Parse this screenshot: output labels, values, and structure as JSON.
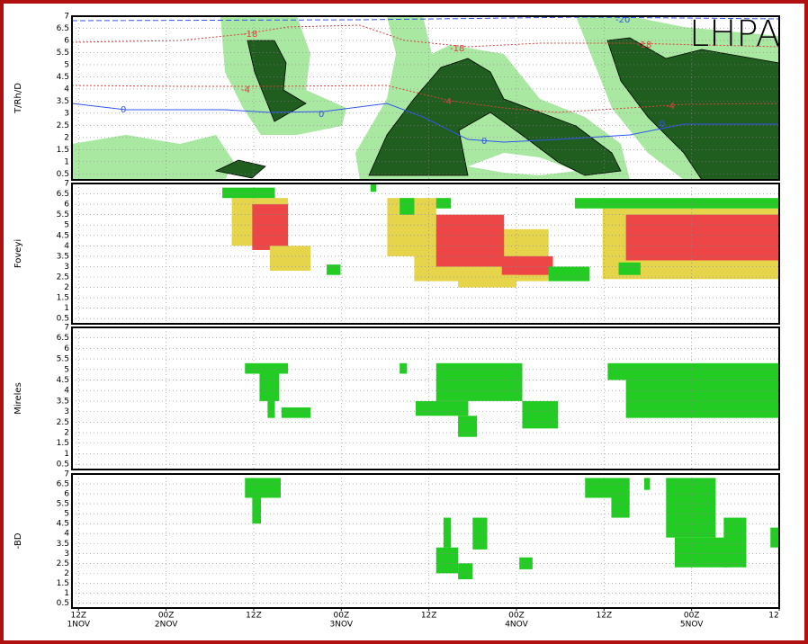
{
  "chart_data": [
    {
      "type": "heatmap",
      "title": "LHPA",
      "ylabel": "T/Rh/D",
      "ylim": [
        0.25,
        7
      ],
      "yticks": [
        0.5,
        1,
        1.5,
        2,
        2.5,
        3,
        3.5,
        4,
        4.5,
        5,
        5.5,
        6,
        6.5,
        7
      ],
      "grid": true,
      "annotations": [
        "-18",
        "-18",
        "-18",
        "-4",
        "-4",
        "-4",
        "0",
        "0",
        "0",
        "0",
        "-20"
      ]
    },
    {
      "type": "heatmap",
      "ylabel": "Foveyi",
      "ylim": [
        0.25,
        7
      ],
      "yticks": [
        0.5,
        1,
        1.5,
        2,
        2.5,
        3,
        3.5,
        4,
        4.5,
        5,
        5.5,
        6,
        6.5,
        7
      ],
      "grid": true,
      "cells": [
        {
          "x": [
            21,
            28.7
          ],
          "y": [
            4,
            6.3
          ],
          "color": "#e6d44a"
        },
        {
          "x": [
            23.8,
            28.7
          ],
          "y": [
            3.8,
            6
          ],
          "color": "#ee4646"
        },
        {
          "x": [
            26.2,
            31.8
          ],
          "y": [
            2.8,
            4
          ],
          "color": "#e6d44a"
        },
        {
          "x": [
            19.7,
            26.9
          ],
          "y": [
            6.3,
            6.8
          ],
          "color": "#22cc22"
        },
        {
          "x": [
            34,
            35.9
          ],
          "y": [
            2.6,
            3.1
          ],
          "color": "#22cc22"
        },
        {
          "x": [
            40,
            40.8
          ],
          "y": [
            6.6,
            7
          ],
          "color": "#22cc22"
        },
        {
          "x": [
            42.3,
            49
          ],
          "y": [
            3.5,
            6.3
          ],
          "color": "#e6d44a"
        },
        {
          "x": [
            46,
            64.4
          ],
          "y": [
            2.3,
            4.8
          ],
          "color": "#e6d44a"
        },
        {
          "x": [
            49,
            58.3
          ],
          "y": [
            3,
            5.5
          ],
          "color": "#ee4646"
        },
        {
          "x": [
            58,
            65
          ],
          "y": [
            2.6,
            3.5
          ],
          "color": "#ee4646"
        },
        {
          "x": [
            52,
            60
          ],
          "y": [
            2,
            2.6
          ],
          "color": "#e6d44a"
        },
        {
          "x": [
            44,
            46
          ],
          "y": [
            5.5,
            6.3
          ],
          "color": "#22cc22"
        },
        {
          "x": [
            49,
            51
          ],
          "y": [
            5.8,
            6.3
          ],
          "color": "#22cc22"
        },
        {
          "x": [
            64.4,
            70
          ],
          "y": [
            2.3,
            3
          ],
          "color": "#22cc22"
        },
        {
          "x": [
            71.8,
            96
          ],
          "y": [
            2.4,
            5.8
          ],
          "color": "#e6d44a"
        },
        {
          "x": [
            75,
            96
          ],
          "y": [
            3.3,
            5.5
          ],
          "color": "#ee4646"
        },
        {
          "x": [
            68,
            96
          ],
          "y": [
            5.8,
            6.3
          ],
          "color": "#22cc22"
        },
        {
          "x": [
            74,
            77
          ],
          "y": [
            2.6,
            3.2
          ],
          "color": "#22cc22"
        }
      ]
    },
    {
      "type": "heatmap",
      "ylabel": "Mireles",
      "ylim": [
        0.25,
        7
      ],
      "yticks": [
        0.5,
        1,
        1.5,
        2,
        2.5,
        3,
        3.5,
        4,
        4.5,
        5,
        5.5,
        6,
        6.5,
        7
      ],
      "grid": true,
      "cells": [
        {
          "x": [
            22.8,
            28.7
          ],
          "y": [
            4.8,
            5.3
          ],
          "color": "#22cc22"
        },
        {
          "x": [
            24.8,
            27.5
          ],
          "y": [
            3.5,
            4.8
          ],
          "color": "#22cc22"
        },
        {
          "x": [
            25.9,
            26.9
          ],
          "y": [
            2.7,
            3.5
          ],
          "color": "#22cc22"
        },
        {
          "x": [
            27.8,
            31.8
          ],
          "y": [
            2.7,
            3.2
          ],
          "color": "#22cc22"
        },
        {
          "x": [
            44,
            45
          ],
          "y": [
            4.8,
            5.3
          ],
          "color": "#22cc22"
        },
        {
          "x": [
            46.2,
            53.4
          ],
          "y": [
            2.8,
            3.5
          ],
          "color": "#22cc22"
        },
        {
          "x": [
            49,
            60.8
          ],
          "y": [
            3.5,
            5.3
          ],
          "color": "#22cc22"
        },
        {
          "x": [
            52,
            54.6
          ],
          "y": [
            1.8,
            2.8
          ],
          "color": "#22cc22"
        },
        {
          "x": [
            60.8,
            65.7
          ],
          "y": [
            2.2,
            3.5
          ],
          "color": "#22cc22"
        },
        {
          "x": [
            72.5,
            96
          ],
          "y": [
            4.5,
            5.3
          ],
          "color": "#22cc22"
        },
        {
          "x": [
            75,
            96
          ],
          "y": [
            2.7,
            4.5
          ],
          "color": "#22cc22"
        }
      ]
    },
    {
      "type": "heatmap",
      "ylabel": "-BD",
      "ylim": [
        0.25,
        7
      ],
      "yticks": [
        0.5,
        1,
        1.5,
        2,
        2.5,
        3,
        3.5,
        4,
        4.5,
        5,
        5.5,
        6,
        6.5,
        7
      ],
      "grid": true,
      "xlim": [
        -0.9,
        96
      ],
      "xticks": [
        {
          "value": 0,
          "label": "12Z"
        },
        {
          "value": 12,
          "label": "00Z"
        },
        {
          "value": 24,
          "label": "12Z"
        },
        {
          "value": 36,
          "label": "00Z"
        },
        {
          "value": 48,
          "label": "12Z"
        },
        {
          "value": 60,
          "label": "00Z"
        },
        {
          "value": 72,
          "label": "12Z"
        },
        {
          "value": 84,
          "label": "00Z"
        },
        {
          "value": 96,
          "label": "12"
        }
      ],
      "xdays": [
        {
          "value": 0,
          "label": "1NOV"
        },
        {
          "value": 12,
          "label": "2NOV"
        },
        {
          "value": 36,
          "label": "3NOV"
        },
        {
          "value": 60,
          "label": "4NOV"
        },
        {
          "value": 84,
          "label": "5NOV"
        }
      ],
      "cells": [
        {
          "x": [
            22.8,
            27.7
          ],
          "y": [
            5.8,
            6.8
          ],
          "color": "#22cc22"
        },
        {
          "x": [
            23.8,
            25
          ],
          "y": [
            4.5,
            5.8
          ],
          "color": "#22cc22"
        },
        {
          "x": [
            49,
            52
          ],
          "y": [
            2,
            3.3
          ],
          "color": "#22cc22"
        },
        {
          "x": [
            52,
            54
          ],
          "y": [
            1.7,
            2.5
          ],
          "color": "#22cc22"
        },
        {
          "x": [
            50,
            51
          ],
          "y": [
            3.3,
            4.8
          ],
          "color": "#22cc22"
        },
        {
          "x": [
            54,
            56
          ],
          "y": [
            3.2,
            4.8
          ],
          "color": "#22cc22"
        },
        {
          "x": [
            60.4,
            62.2
          ],
          "y": [
            2.2,
            2.8
          ],
          "color": "#22cc22"
        },
        {
          "x": [
            69.4,
            75.5
          ],
          "y": [
            5.8,
            6.8
          ],
          "color": "#22cc22"
        },
        {
          "x": [
            73,
            75.5
          ],
          "y": [
            4.8,
            5.8
          ],
          "color": "#22cc22"
        },
        {
          "x": [
            77.5,
            78.3
          ],
          "y": [
            6.2,
            6.8
          ],
          "color": "#22cc22"
        },
        {
          "x": [
            80.5,
            87.3
          ],
          "y": [
            3.8,
            6.8
          ],
          "color": "#22cc22"
        },
        {
          "x": [
            81.7,
            89
          ],
          "y": [
            2.3,
            3.8
          ],
          "color": "#22cc22"
        },
        {
          "x": [
            88.4,
            91.5
          ],
          "y": [
            2.3,
            4.8
          ],
          "color": "#22cc22"
        },
        {
          "x": [
            94.8,
            96
          ],
          "y": [
            3.3,
            4.3
          ],
          "color": "#22cc22"
        }
      ]
    }
  ]
}
